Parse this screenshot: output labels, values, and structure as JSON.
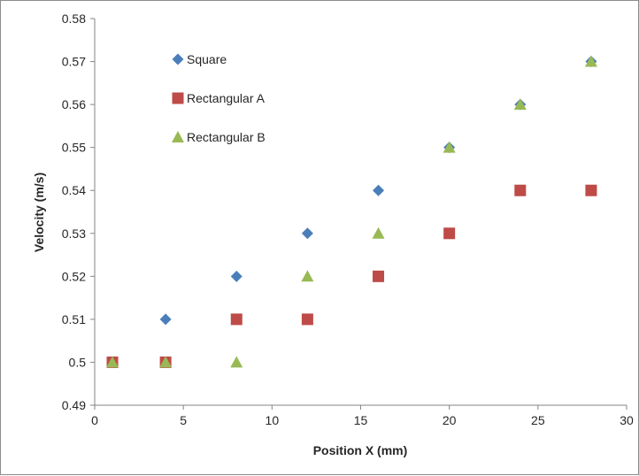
{
  "chart_data": {
    "type": "scatter",
    "title": "",
    "xlabel": "Position X (mm)",
    "ylabel": "Velocity (m/s)",
    "xlim": [
      0,
      30
    ],
    "ylim": [
      0.49,
      0.58
    ],
    "xticks": [
      "0",
      "5",
      "10",
      "15",
      "20",
      "25",
      "30"
    ],
    "yticks": [
      "0.49",
      "0.5",
      "0.51",
      "0.52",
      "0.53",
      "0.54",
      "0.55",
      "0.56",
      "0.57",
      "0.58"
    ],
    "grid": false,
    "legend_position": "top-left",
    "series": [
      {
        "name": "Square",
        "marker": "diamond",
        "color": "#4a7ebb",
        "x": [
          1,
          4,
          8,
          12,
          16,
          20,
          24,
          28
        ],
        "y": [
          0.5,
          0.51,
          0.52,
          0.53,
          0.54,
          0.55,
          0.56,
          0.57
        ]
      },
      {
        "name": "Rectangular A",
        "marker": "square",
        "color": "#be4b48",
        "x": [
          1,
          4,
          8,
          12,
          16,
          20,
          24,
          28
        ],
        "y": [
          0.5,
          0.5,
          0.51,
          0.51,
          0.52,
          0.53,
          0.54,
          0.54
        ]
      },
      {
        "name": "Rectangular B",
        "marker": "triangle",
        "color": "#98b954",
        "x": [
          1,
          4,
          8,
          12,
          16,
          20,
          24,
          28
        ],
        "y": [
          0.5,
          0.5,
          0.5,
          0.52,
          0.53,
          0.55,
          0.56,
          0.57
        ]
      }
    ]
  }
}
